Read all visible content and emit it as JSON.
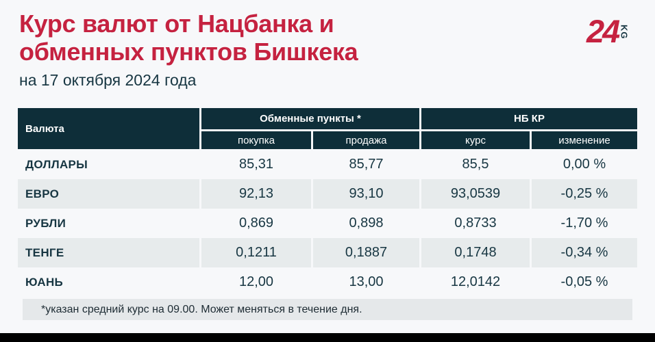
{
  "page": {
    "title_line1": "Курс валют от Нацбанка и",
    "title_line2": "обменных пунктов Бишкека",
    "subtitle": "на 17 октября 2024 года",
    "logo": {
      "number": "24",
      "suffix": "KG"
    }
  },
  "colors": {
    "accent_red": "#c52240",
    "header_bg": "#0e2e39",
    "text_teal": "#173642",
    "row_stripe": "#e7ebec",
    "note_bg": "#e5e8ea",
    "page_bg": "#f7f8fa",
    "bottom_bar": "#000000"
  },
  "table": {
    "col_currency": "Валюта",
    "group_exchange": "Обменные пункты *",
    "group_nbkr": "НБ КР",
    "sub_buy": "покупка",
    "sub_sell": "продажа",
    "sub_rate": "курс",
    "sub_change": "изменение",
    "rows": [
      {
        "currency": "ДОЛЛАРЫ",
        "buy": "85,31",
        "sell": "85,77",
        "rate": "85,5",
        "change": "0,00 %"
      },
      {
        "currency": "ЕВРО",
        "buy": "92,13",
        "sell": "93,10",
        "rate": "93,0539",
        "change": "-0,25 %"
      },
      {
        "currency": "РУБЛИ",
        "buy": "0,869",
        "sell": "0,898",
        "rate": "0,8733",
        "change": "-1,70 %"
      },
      {
        "currency": "ТЕНГЕ",
        "buy": "0,1211",
        "sell": "0,1887",
        "rate": "0,1748",
        "change": "-0,34 %"
      },
      {
        "currency": "ЮАНЬ",
        "buy": "12,00",
        "sell": "13,00",
        "rate": "12,0142",
        "change": "-0,05 %"
      }
    ],
    "footnote": "*указан средний курс на 09.00. Может меняться в течение дня."
  },
  "chart_data": {
    "type": "table",
    "title": "Курс валют от Нацбанка и обменных пунктов Бишкека",
    "subtitle": "на 17 октября 2024 года",
    "column_groups": [
      {
        "label": "",
        "columns": [
          "Валюта"
        ]
      },
      {
        "label": "Обменные пункты *",
        "columns": [
          "покупка",
          "продажа"
        ]
      },
      {
        "label": "НБ КР",
        "columns": [
          "курс",
          "изменение"
        ]
      }
    ],
    "rows": [
      [
        "ДОЛЛАРЫ",
        "85,31",
        "85,77",
        "85,5",
        "0,00 %"
      ],
      [
        "ЕВРО",
        "92,13",
        "93,10",
        "93,0539",
        "-0,25 %"
      ],
      [
        "РУБЛИ",
        "0,869",
        "0,898",
        "0,8733",
        "-1,70 %"
      ],
      [
        "ТЕНГЕ",
        "0,1211",
        "0,1887",
        "0,1748",
        "-0,34 %"
      ],
      [
        "ЮАНЬ",
        "12,00",
        "13,00",
        "12,0142",
        "-0,05 %"
      ]
    ],
    "footnote": "*указан средний курс на 09.00. Может меняться в течение дня."
  }
}
